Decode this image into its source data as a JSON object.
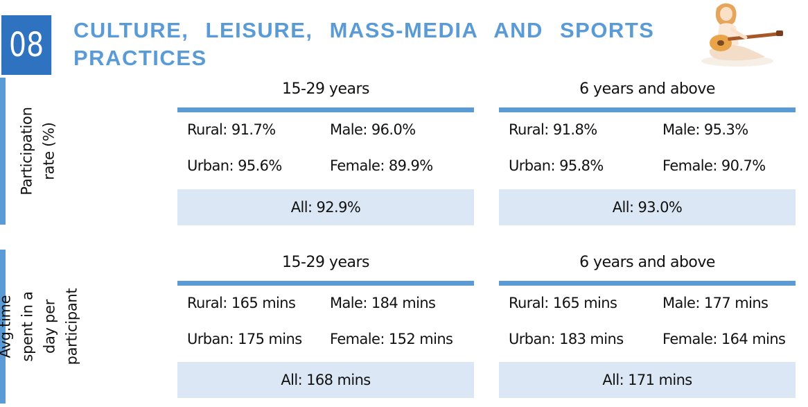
{
  "section": {
    "number": "08",
    "title": "CULTURE, LEISURE, MASS-MEDIA AND SPORTS PRACTICES"
  },
  "illustration": {
    "icon": "person-playing-guitar-icon"
  },
  "colors": {
    "accent": "#5b9bd5",
    "number_box": "#2f72c0",
    "highlight": "#dbe7f4"
  },
  "blocks": [
    {
      "label": "Participation rate (%)",
      "panels": [
        {
          "heading": "15-29 years",
          "rural": "Rural: 91.7%",
          "male": "Male: 96.0%",
          "urban": "Urban: 95.6%",
          "female": "Female: 89.9%",
          "all": "All: 92.9%"
        },
        {
          "heading": "6 years and above",
          "rural": "Rural: 91.8%",
          "male": "Male: 95.3%",
          "urban": "Urban: 95.8%",
          "female": "Female: 90.7%",
          "all": "All: 93.0%"
        }
      ]
    },
    {
      "label": "Avg.time spent in a day per participant",
      "panels": [
        {
          "heading": "15-29 years",
          "rural": "Rural: 165 mins",
          "male": "Male: 184 mins",
          "urban": "Urban: 175 mins",
          "female": "Female: 152 mins",
          "all": "All: 168 mins"
        },
        {
          "heading": "6 years and above",
          "rural": "Rural: 165 mins",
          "male": "Male: 177 mins",
          "urban": "Urban: 183 mins",
          "female": "Female: 164 mins",
          "all": "All: 171 mins"
        }
      ]
    }
  ]
}
